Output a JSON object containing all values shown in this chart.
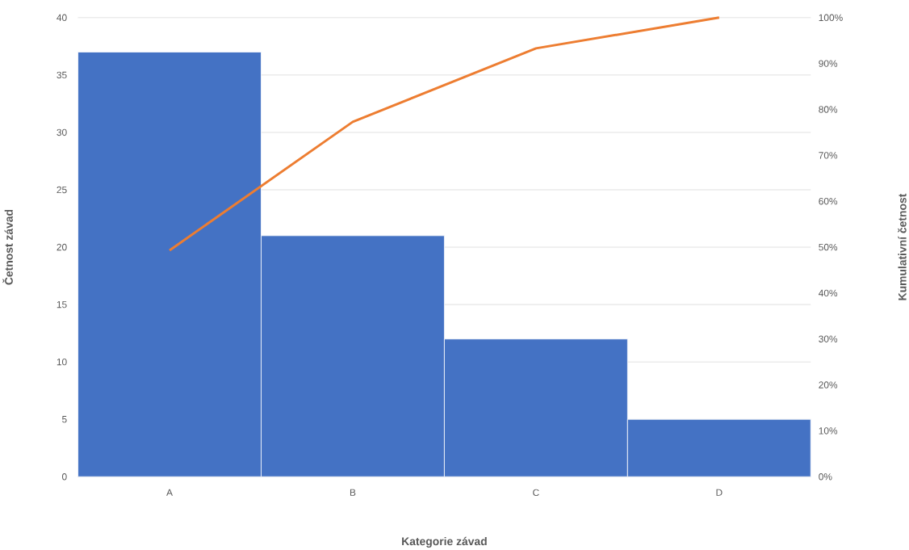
{
  "chart_data": {
    "type": "bar",
    "xlabel": "Kategorie závad",
    "ylabel": "Četnost závad",
    "y2label": "Kumulativní četnost",
    "categories": [
      "A",
      "B",
      "C",
      "D"
    ],
    "series": [
      {
        "color": "#4472c4",
        "values": [
          37,
          21,
          12,
          5
        ]
      },
      {
        "type": "line",
        "axis": "y2",
        "color": "#ed7d31",
        "values": [
          49.3,
          77.3,
          93.3,
          100
        ]
      }
    ],
    "ylim": [
      0,
      40
    ],
    "yticks": [
      0,
      5,
      10,
      15,
      20,
      25,
      30,
      35,
      40
    ],
    "y2lim": [
      0,
      100
    ],
    "y2ticks": [
      {
        "value": 0,
        "label": "0%"
      },
      {
        "value": 10,
        "label": "10%"
      },
      {
        "value": 20,
        "label": "20%"
      },
      {
        "value": 30,
        "label": "30%"
      },
      {
        "value": 40,
        "label": "40%"
      },
      {
        "value": 50,
        "label": "50%"
      },
      {
        "value": 60,
        "label": "60%"
      },
      {
        "value": 70,
        "label": "70%"
      },
      {
        "value": 80,
        "label": "80%"
      },
      {
        "value": 90,
        "label": "90%"
      },
      {
        "value": 100,
        "label": "100%"
      }
    ],
    "grid": "y"
  }
}
